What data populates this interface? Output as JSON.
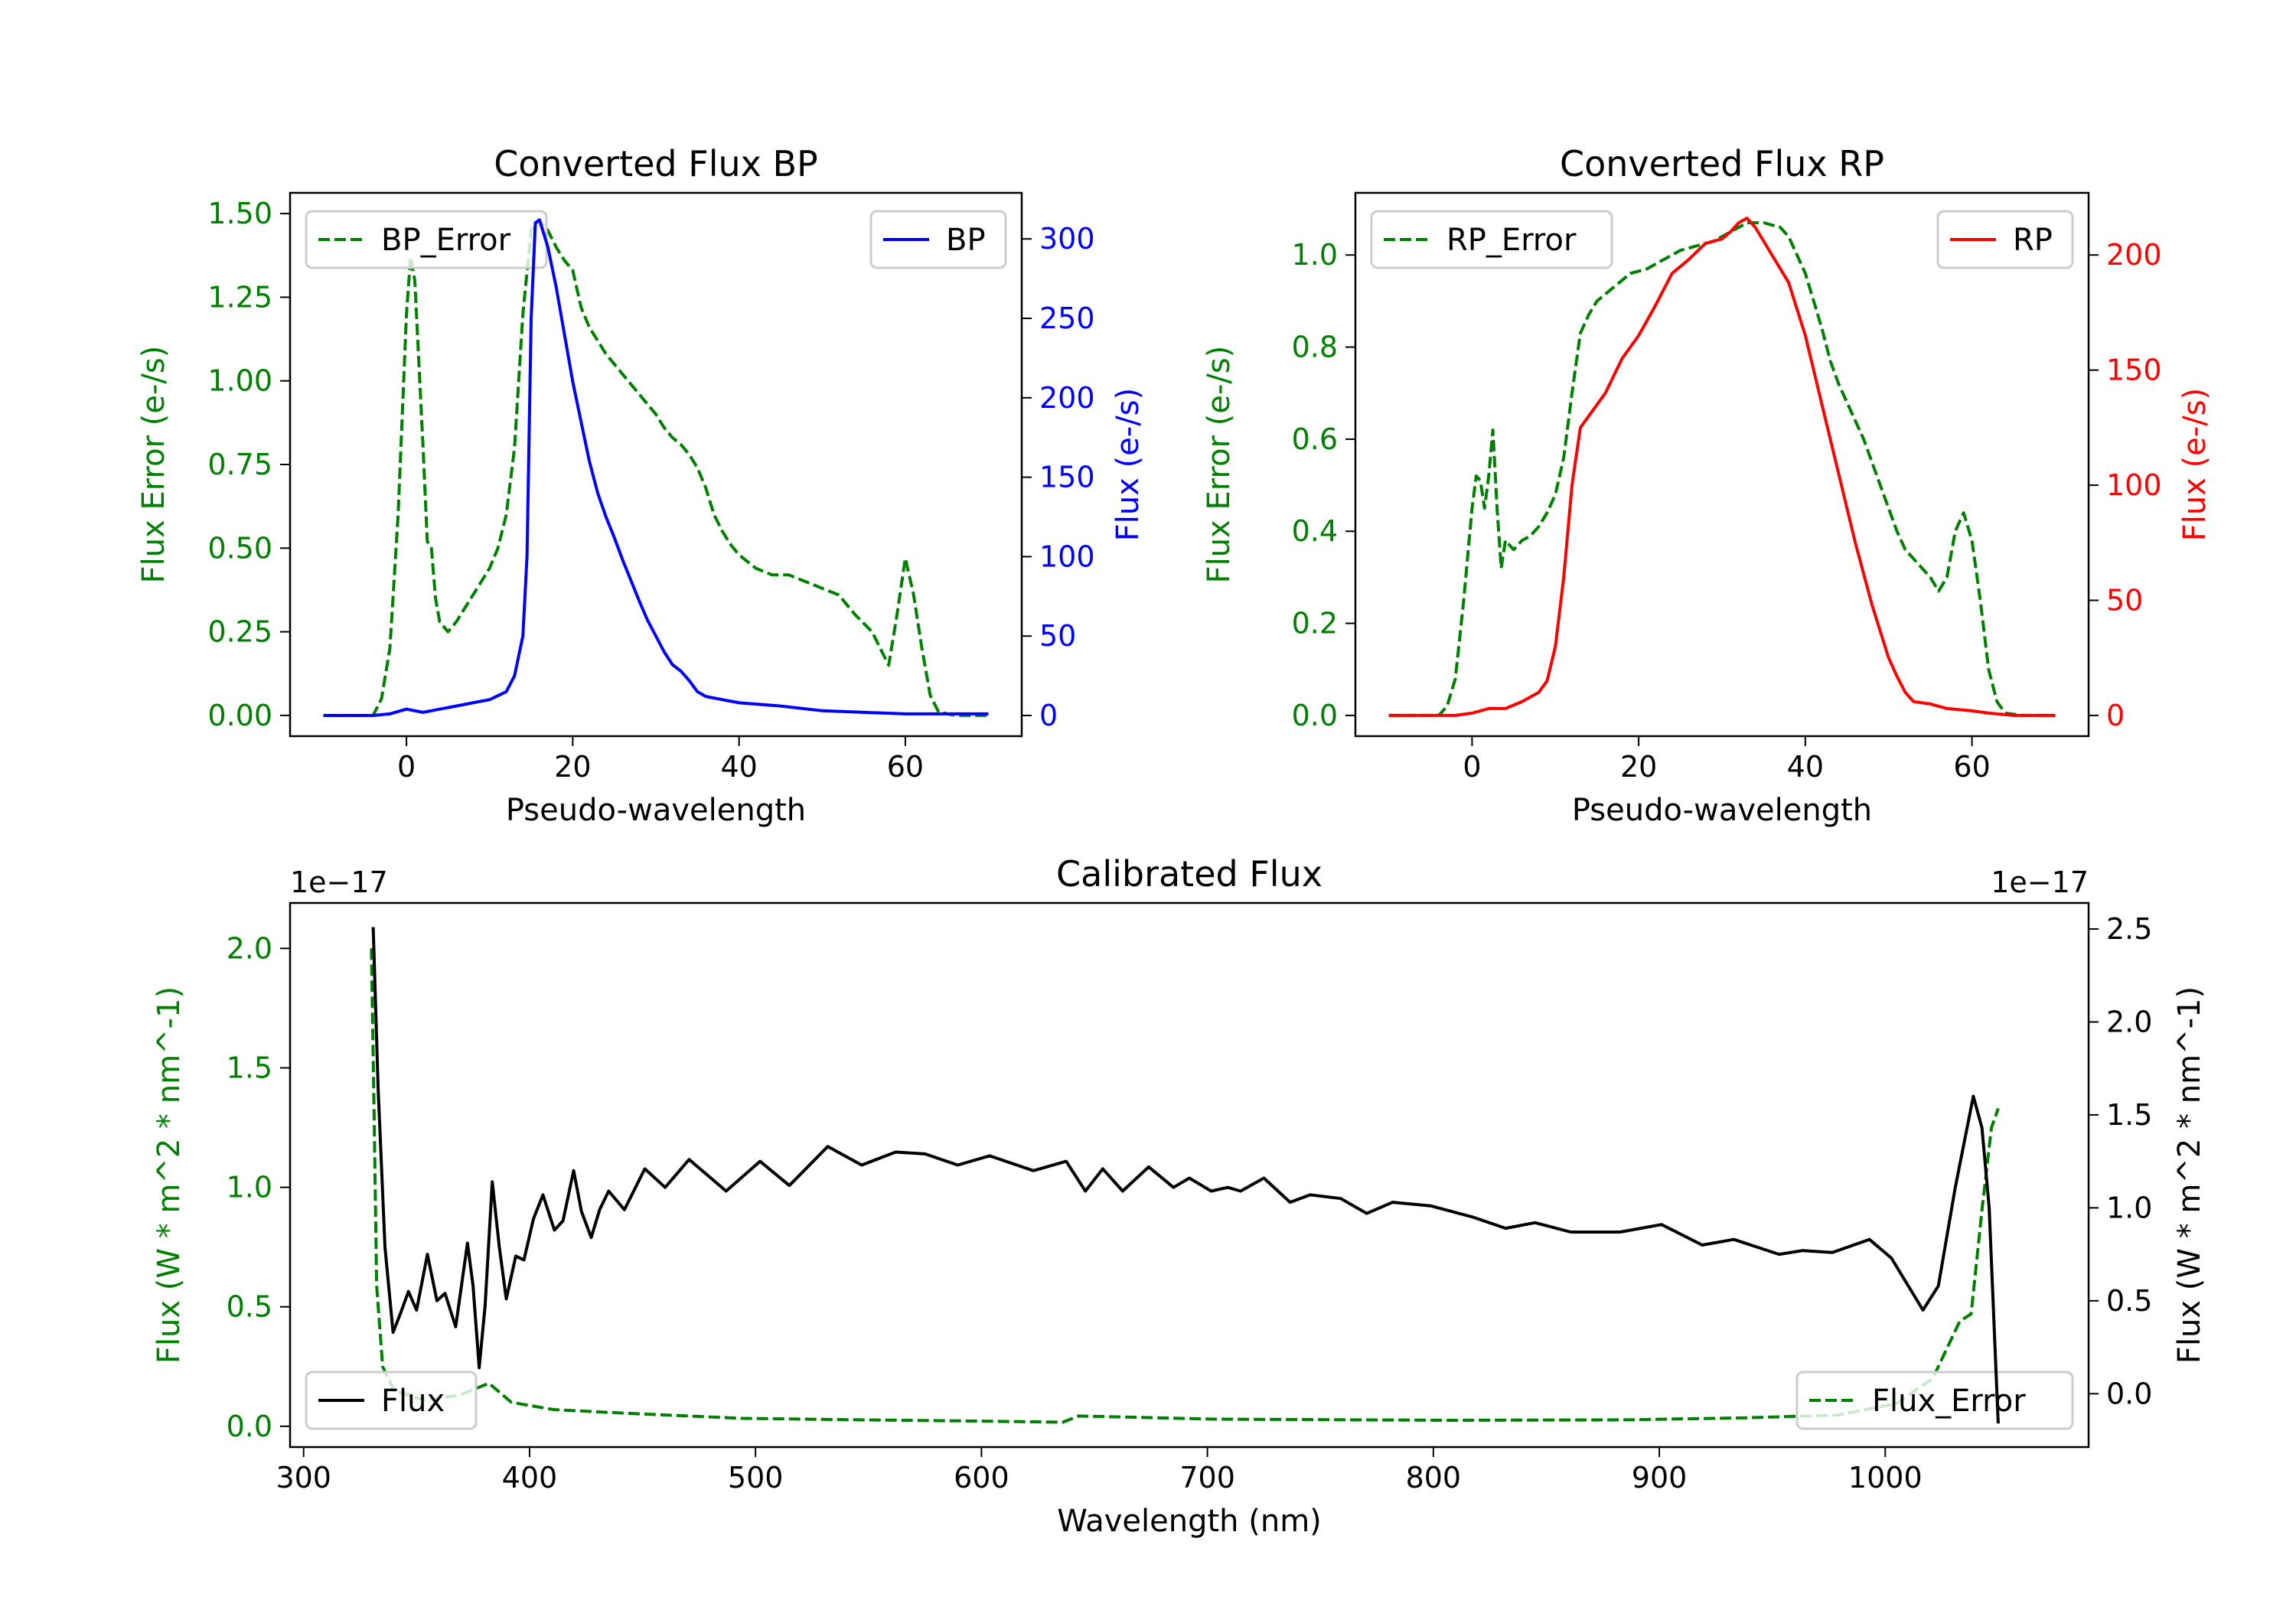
{
  "chart_data": [
    {
      "type": "line",
      "title": "Converted Flux BP",
      "xlabel": "Pseudo-wavelength",
      "ylabel_left": "Flux Error (e-/s)",
      "ylabel_right": "Flux (e-/s)",
      "xlim": [
        -14,
        74
      ],
      "ylim_left": [
        -0.062,
        1.562
      ],
      "ylim_right": [
        -13,
        329
      ],
      "xticks": [
        0,
        20,
        40,
        60
      ],
      "xtick_labels": [
        "0",
        "20",
        "40",
        "60"
      ],
      "yticks_left": [
        0,
        0.25,
        0.5,
        0.75,
        1.0,
        1.25,
        1.5
      ],
      "ytick_labels_left": [
        "0.00",
        "0.25",
        "0.50",
        "0.75",
        "1.00",
        "1.25",
        "1.50"
      ],
      "yticks_right": [
        0,
        50,
        100,
        150,
        200,
        250,
        300
      ],
      "ytick_labels_right": [
        "0",
        "50",
        "100",
        "150",
        "200",
        "250",
        "300"
      ],
      "left_color": "#008000",
      "right_color": "#0000ff",
      "legend_left": {
        "label": "BP_Error",
        "placement": "upper-left"
      },
      "legend_right": {
        "label": "BP",
        "placement": "upper-right"
      },
      "series_left": {
        "name": "BP_Error",
        "color": "#008000",
        "style": "dashed",
        "x": [
          -10,
          -4,
          -3,
          -2,
          -1,
          0,
          0.5,
          1,
          2,
          2.5,
          3,
          3.5,
          4,
          5,
          6,
          7,
          8,
          9,
          10,
          11,
          12,
          13,
          14,
          15,
          16,
          17,
          18,
          19,
          20,
          21,
          22,
          23,
          24,
          25,
          26,
          27,
          28,
          29,
          30,
          31,
          32,
          33,
          34,
          35,
          36,
          37,
          38,
          39,
          40,
          42,
          44,
          46,
          48,
          50,
          52,
          54,
          56,
          57,
          58,
          59,
          60,
          61,
          62,
          63,
          64,
          66,
          70
        ],
        "y": [
          0,
          0,
          0.05,
          0.2,
          0.6,
          1.2,
          1.37,
          1.3,
          0.8,
          0.52,
          0.5,
          0.35,
          0.28,
          0.25,
          0.28,
          0.32,
          0.36,
          0.4,
          0.44,
          0.5,
          0.6,
          0.8,
          1.2,
          1.45,
          1.48,
          1.45,
          1.4,
          1.36,
          1.33,
          1.22,
          1.16,
          1.12,
          1.08,
          1.05,
          1.02,
          0.99,
          0.96,
          0.93,
          0.9,
          0.86,
          0.83,
          0.81,
          0.78,
          0.74,
          0.68,
          0.6,
          0.55,
          0.51,
          0.48,
          0.44,
          0.42,
          0.42,
          0.4,
          0.38,
          0.36,
          0.3,
          0.25,
          0.2,
          0.15,
          0.3,
          0.47,
          0.36,
          0.2,
          0.06,
          0.01,
          0,
          0
        ]
      },
      "series_right": {
        "name": "BP",
        "color": "#0000ff",
        "style": "solid",
        "x": [
          -10,
          -4,
          -2,
          0,
          1,
          2,
          4,
          6,
          8,
          10,
          12,
          13,
          14,
          14.5,
          15,
          15.5,
          16,
          17,
          18,
          19,
          20,
          21,
          22,
          23,
          24,
          25,
          26,
          27,
          28,
          29,
          30,
          31,
          32,
          33,
          34,
          35,
          36,
          38,
          40,
          45,
          50,
          55,
          60,
          65,
          70
        ],
        "y": [
          0,
          0,
          1,
          4,
          3,
          2,
          4,
          6,
          8,
          10,
          15,
          25,
          50,
          100,
          250,
          310,
          312,
          295,
          270,
          240,
          210,
          185,
          160,
          140,
          125,
          112,
          98,
          85,
          72,
          60,
          50,
          40,
          32,
          28,
          22,
          15,
          12,
          10,
          8,
          6,
          3,
          2,
          1,
          1,
          1
        ]
      }
    },
    {
      "type": "line",
      "title": "Converted Flux RP",
      "xlabel": "Pseudo-wavelength",
      "ylabel_left": "Flux Error (e-/s)",
      "ylabel_right": "Flux (e-/s)",
      "xlim": [
        -14,
        74
      ],
      "ylim_left": [
        -0.045,
        1.135
      ],
      "ylim_right": [
        -9,
        227
      ],
      "xticks": [
        0,
        20,
        40,
        60
      ],
      "xtick_labels": [
        "0",
        "20",
        "40",
        "60"
      ],
      "yticks_left": [
        0,
        0.2,
        0.4,
        0.6,
        0.8,
        1.0
      ],
      "ytick_labels_left": [
        "0.0",
        "0.2",
        "0.4",
        "0.6",
        "0.8",
        "1.0"
      ],
      "yticks_right": [
        0,
        50,
        100,
        150,
        200
      ],
      "ytick_labels_right": [
        "0",
        "50",
        "100",
        "150",
        "200"
      ],
      "left_color": "#008000",
      "right_color": "#ff0000",
      "legend_left": {
        "label": "RP_Error",
        "placement": "upper-left"
      },
      "legend_right": {
        "label": "RP",
        "placement": "upper-right"
      },
      "series_left": {
        "name": "RP_Error",
        "color": "#008000",
        "style": "dashed",
        "x": [
          -10,
          -4,
          -3,
          -2,
          -1,
          0,
          0.5,
          1,
          1.5,
          2,
          2.5,
          3,
          3.5,
          4,
          5,
          6,
          7,
          8,
          9,
          10,
          11,
          12,
          13,
          14,
          15,
          17,
          19,
          21,
          23,
          25,
          27,
          29,
          31,
          33,
          35,
          37,
          38,
          39,
          40,
          41,
          42,
          43,
          44,
          45,
          46,
          47,
          48,
          49,
          50,
          51,
          52,
          53,
          54,
          55,
          56,
          57,
          58,
          59,
          60,
          61,
          62,
          63,
          64,
          66,
          70
        ],
        "y": [
          0,
          0,
          0.02,
          0.08,
          0.25,
          0.45,
          0.52,
          0.51,
          0.45,
          0.52,
          0.62,
          0.45,
          0.32,
          0.38,
          0.36,
          0.38,
          0.39,
          0.41,
          0.44,
          0.48,
          0.56,
          0.7,
          0.83,
          0.87,
          0.9,
          0.93,
          0.96,
          0.97,
          0.99,
          1.01,
          1.02,
          1.03,
          1.05,
          1.07,
          1.07,
          1.06,
          1.04,
          1.0,
          0.96,
          0.9,
          0.84,
          0.77,
          0.72,
          0.68,
          0.64,
          0.6,
          0.55,
          0.5,
          0.45,
          0.4,
          0.36,
          0.34,
          0.32,
          0.3,
          0.27,
          0.3,
          0.4,
          0.44,
          0.38,
          0.25,
          0.1,
          0.03,
          0.005,
          0,
          0
        ]
      },
      "series_right": {
        "name": "RP",
        "color": "#ff0000",
        "style": "solid",
        "x": [
          -10,
          -2,
          0,
          2,
          4,
          6,
          8,
          9,
          10,
          11,
          12,
          13,
          14,
          16,
          18,
          20,
          22,
          24,
          26,
          28,
          30,
          31,
          32,
          33,
          34,
          36,
          38,
          40,
          42,
          44,
          46,
          48,
          50,
          51,
          52,
          53,
          55,
          57,
          60,
          62,
          65,
          70
        ],
        "y": [
          0,
          0,
          1,
          3,
          3,
          6,
          10,
          15,
          30,
          60,
          100,
          125,
          130,
          140,
          155,
          165,
          178,
          192,
          198,
          205,
          207,
          210,
          214,
          216,
          212,
          200,
          188,
          165,
          135,
          105,
          75,
          48,
          25,
          17,
          10,
          6,
          5,
          3,
          2,
          1,
          0,
          0
        ]
      }
    },
    {
      "type": "line",
      "title": "Calibrated Flux",
      "xlabel": "Wavelength (nm)",
      "ylabel_left": "Flux (W * m^2 * nm^-1)",
      "ylabel_right": "Flux (W * m^2 * nm^-1)",
      "offset_left": "1e−17",
      "offset_right": "1e−17",
      "xlim": [
        294,
        1090
      ],
      "ylim_left": [
        -0.087,
        2.19
      ],
      "ylim_right": [
        -0.287,
        2.64
      ],
      "xticks": [
        300,
        400,
        500,
        600,
        700,
        800,
        900,
        1000
      ],
      "xtick_labels": [
        "300",
        "400",
        "500",
        "600",
        "700",
        "800",
        "900",
        "1000"
      ],
      "yticks_left": [
        0,
        0.5,
        1.0,
        1.5,
        2.0
      ],
      "ytick_labels_left": [
        "0.0",
        "0.5",
        "1.0",
        "1.5",
        "2.0"
      ],
      "yticks_right": [
        0,
        0.5,
        1.0,
        1.5,
        2.0,
        2.5
      ],
      "ytick_labels_right": [
        "0.0",
        "0.5",
        "1.0",
        "1.5",
        "2.0",
        "2.5"
      ],
      "left_color": "#008000",
      "right_color": "#000000",
      "legend_left": {
        "label": "Flux_Error",
        "placement": "lower-right"
      },
      "legend_right": {
        "label": "Flux",
        "placement": "lower-left"
      },
      "series_left": {
        "name": "Flux_Error",
        "color": "#008000",
        "style": "dashed",
        "x": [
          330,
          331.3,
          332.3,
          335,
          340,
          353,
          369,
          382,
          392,
          410.6,
          442,
          494,
          546,
          598,
          636,
          643,
          703,
          807,
          885,
          937,
          979,
          1005,
          1021,
          1033,
          1038,
          1043,
          1047,
          1050
        ],
        "y": [
          2.0,
          1.25,
          0.59,
          0.25,
          0.15,
          0.11,
          0.13,
          0.18,
          0.1,
          0.07,
          0.055,
          0.033,
          0.027,
          0.022,
          0.017,
          0.043,
          0.03,
          0.025,
          0.027,
          0.035,
          0.047,
          0.096,
          0.2,
          0.44,
          0.47,
          0.92,
          1.25,
          1.33
        ]
      },
      "series_right": {
        "name": "Flux",
        "color": "#000000",
        "style": "solid",
        "x": [
          330.8,
          333,
          336,
          339.6,
          342.8,
          346.4,
          350,
          354.8,
          359,
          362.6,
          367.3,
          372.5,
          375,
          377.7,
          380.3,
          383.5,
          386.6,
          389.7,
          393.9,
          397.5,
          401.7,
          405.9,
          411,
          414.8,
          419.5,
          423,
          427.3,
          431,
          435,
          442,
          451,
          460,
          470.6,
          487,
          502,
          515,
          532,
          547,
          562,
          575,
          589.5,
          603.6,
          623,
          637.5,
          646,
          653.7,
          662.5,
          674,
          685,
          692,
          701.7,
          709,
          714.7,
          725,
          736.6,
          745.5,
          759,
          770.5,
          782,
          799,
          817.5,
          832,
          845,
          860.8,
          882.7,
          901,
          919,
          933,
          953,
          963.5,
          976.6,
          993,
          1002.7,
          1016.7,
          1023.5,
          1031,
          1039,
          1042.8,
          1046,
          1050
        ],
        "y": [
          2.51,
          1.64,
          0.79,
          0.33,
          0.43,
          0.55,
          0.45,
          0.75,
          0.5,
          0.54,
          0.36,
          0.81,
          0.58,
          0.14,
          0.47,
          1.14,
          0.79,
          0.51,
          0.74,
          0.72,
          0.94,
          1.07,
          0.88,
          0.93,
          1.2,
          0.98,
          0.84,
          0.99,
          1.09,
          0.99,
          1.21,
          1.11,
          1.26,
          1.09,
          1.25,
          1.12,
          1.33,
          1.23,
          1.3,
          1.29,
          1.23,
          1.28,
          1.2,
          1.25,
          1.09,
          1.21,
          1.09,
          1.22,
          1.11,
          1.16,
          1.09,
          1.11,
          1.09,
          1.16,
          1.03,
          1.07,
          1.05,
          0.97,
          1.03,
          1.01,
          0.95,
          0.89,
          0.92,
          0.87,
          0.87,
          0.91,
          0.8,
          0.83,
          0.75,
          0.77,
          0.76,
          0.83,
          0.73,
          0.45,
          0.58,
          1.11,
          1.6,
          1.43,
          1.0,
          -0.16
        ]
      }
    }
  ]
}
